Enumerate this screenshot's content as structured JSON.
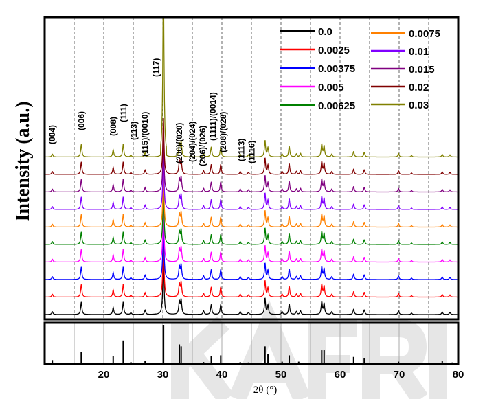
{
  "chart_data": {
    "type": "line",
    "xlabel": "2θ (°)",
    "ylabel": "Intensity (a.u.)",
    "xlim": [
      10,
      80
    ],
    "xticks": [
      20,
      30,
      40,
      50,
      60,
      70,
      80
    ],
    "grid": "dashed vertical every 5°",
    "legend_placement": "top-right",
    "series": [
      {
        "name": "0.0",
        "color": "#000000"
      },
      {
        "name": "0.0025",
        "color": "#ff0000"
      },
      {
        "name": "0.00375",
        "color": "#0000ff"
      },
      {
        "name": "0.005",
        "color": "#ff00ff"
      },
      {
        "name": "0.00625",
        "color": "#008000"
      },
      {
        "name": "0.0075",
        "color": "#ff8000"
      },
      {
        "name": "0.01",
        "color": "#8000ff"
      },
      {
        "name": "0.015",
        "color": "#800080"
      },
      {
        "name": "0.02",
        "color": "#800000"
      },
      {
        "name": "0.03",
        "color": "#808000"
      }
    ],
    "peaks": [
      [
        11.3,
        0.08
      ],
      [
        16.2,
        0.35
      ],
      [
        21.6,
        0.2
      ],
      [
        23.3,
        0.35
      ],
      [
        24.6,
        0.05
      ],
      [
        27.0,
        0.12
      ],
      [
        30.1,
        1.0
      ],
      [
        32.8,
        0.35
      ],
      [
        33.1,
        0.4
      ],
      [
        36.9,
        0.1
      ],
      [
        38.2,
        0.28
      ],
      [
        39.8,
        0.28
      ],
      [
        43.1,
        0.08
      ],
      [
        44.5,
        0.06
      ],
      [
        47.3,
        0.45
      ],
      [
        47.8,
        0.25
      ],
      [
        50.2,
        0.08
      ],
      [
        51.4,
        0.3
      ],
      [
        52.6,
        0.08
      ],
      [
        53.3,
        0.1
      ],
      [
        56.9,
        0.35
      ],
      [
        57.3,
        0.3
      ],
      [
        58.6,
        0.08
      ],
      [
        62.3,
        0.15
      ],
      [
        64.1,
        0.13
      ],
      [
        69.9,
        0.1
      ],
      [
        72.1,
        0.04
      ],
      [
        77.3,
        0.07
      ],
      [
        78.6,
        0.06
      ]
    ],
    "peak_labels": [
      {
        "x": 11.3,
        "text": "(004)"
      },
      {
        "x": 16.2,
        "text": "(006)"
      },
      {
        "x": 21.6,
        "text": "(008)"
      },
      {
        "x": 23.3,
        "text": "(111)"
      },
      {
        "x": 24.9,
        "text": "(113)"
      },
      {
        "x": 27.0,
        "text": "(115)/(0010)"
      },
      {
        "x": 28.9,
        "text": "(117)"
      },
      {
        "x": 32.8,
        "text": "(200)/(020)"
      },
      {
        "x": 35.0,
        "text": "(204)/(024)"
      },
      {
        "x": 36.6,
        "text": "(206)/(026)"
      },
      {
        "x": 38.2,
        "text": "(1111)/(0014)"
      },
      {
        "x": 39.6,
        "text": "(208)/(028)"
      },
      {
        "x": 43.3,
        "text": "(1113)"
      },
      {
        "x": 44.6,
        "text": "(1116)"
      }
    ],
    "reference_sticks": [
      [
        11.3,
        0.1
      ],
      [
        16.2,
        0.3
      ],
      [
        21.6,
        0.2
      ],
      [
        23.3,
        0.6
      ],
      [
        24.6,
        0.05
      ],
      [
        27.0,
        0.08
      ],
      [
        30.1,
        1.0
      ],
      [
        32.8,
        0.5
      ],
      [
        33.1,
        0.45
      ],
      [
        36.9,
        0.05
      ],
      [
        38.2,
        0.2
      ],
      [
        39.8,
        0.22
      ],
      [
        43.1,
        0.05
      ],
      [
        44.5,
        0.04
      ],
      [
        47.3,
        0.45
      ],
      [
        47.8,
        0.25
      ],
      [
        50.2,
        0.06
      ],
      [
        51.4,
        0.22
      ],
      [
        53.0,
        0.06
      ],
      [
        56.9,
        0.35
      ],
      [
        57.3,
        0.35
      ],
      [
        62.3,
        0.18
      ],
      [
        64.1,
        0.14
      ],
      [
        69.9,
        0.06
      ],
      [
        77.3,
        0.08
      ],
      [
        79.0,
        0.04
      ]
    ]
  },
  "watermark": "KAERI"
}
